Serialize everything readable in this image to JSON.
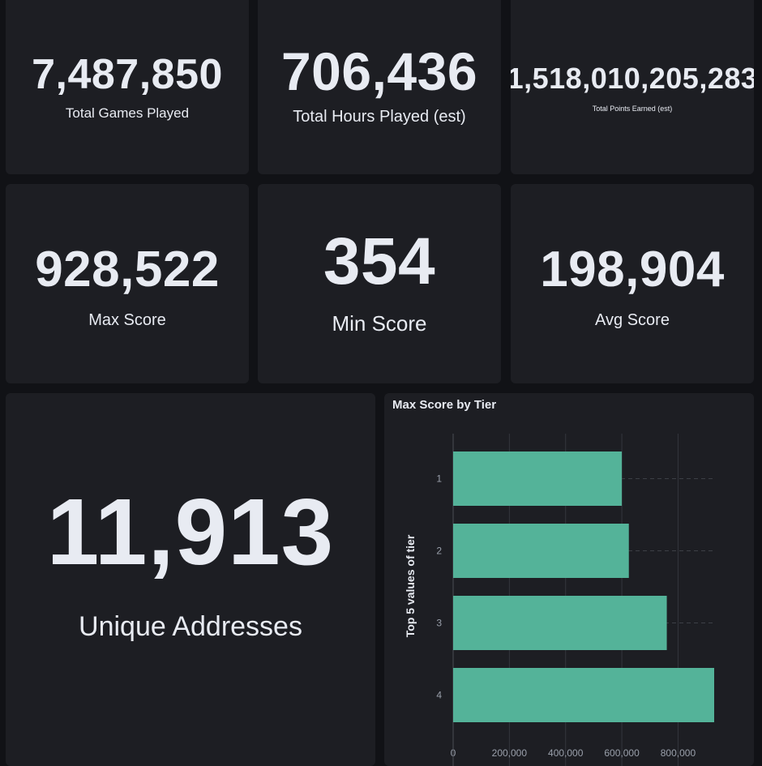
{
  "metrics": {
    "total_games": {
      "value": "7,487,850",
      "label": "Total Games Played"
    },
    "total_hours": {
      "value": "706,436",
      "label": "Total Hours Played (est)"
    },
    "total_points": {
      "value": "1,518,010,205,283",
      "label": "Total Points Earned (est)"
    },
    "max_score": {
      "value": "928,522",
      "label": "Max Score"
    },
    "min_score": {
      "value": "354",
      "label": "Min Score"
    },
    "avg_score": {
      "value": "198,904",
      "label": "Avg Score"
    },
    "unique_addresses": {
      "value": "11,913",
      "label": "Unique Addresses"
    }
  },
  "colors": {
    "background": "#111216",
    "panel": "#1d1e23",
    "bar": "#54b399",
    "text": "#e8ebf2",
    "axis_text": "#9aa0ab"
  },
  "chart_data": {
    "type": "bar",
    "orientation": "horizontal",
    "title": "Max Score by Tier",
    "xlabel": "",
    "ylabel": "Top 5 values of tier",
    "categories": [
      "1",
      "2",
      "3",
      "4"
    ],
    "values": [
      600000,
      625000,
      760000,
      928522
    ],
    "xlim": [
      0,
      928522
    ],
    "x_ticks": [
      {
        "value": 0,
        "label": "0"
      },
      {
        "value": 200000,
        "label": "200,000"
      },
      {
        "value": 400000,
        "label": "400,000"
      },
      {
        "value": 600000,
        "label": "600,000"
      },
      {
        "value": 800000,
        "label": "800,000"
      }
    ],
    "grid": true
  }
}
